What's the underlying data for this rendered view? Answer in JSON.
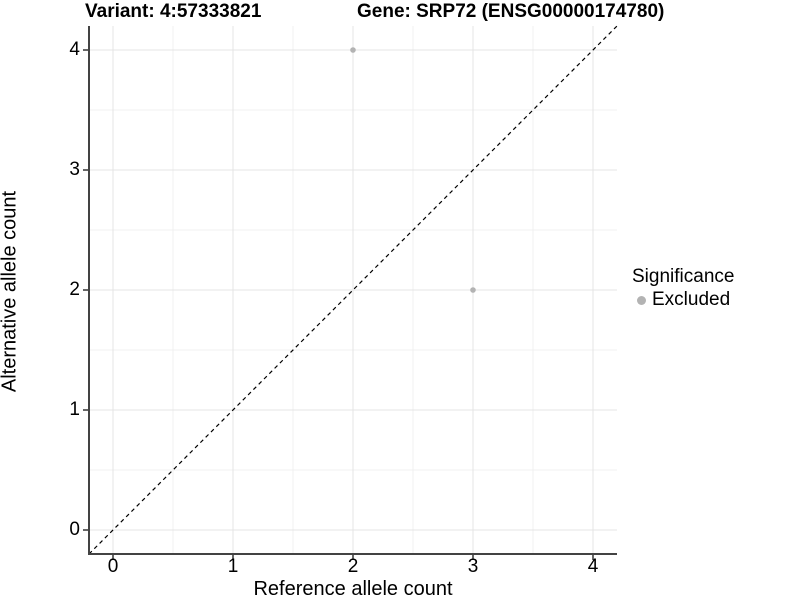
{
  "titles": {
    "variant": "Variant: 4:57333821",
    "gene": "Gene: SRP72 (ENSG00000174780)"
  },
  "chart_data": {
    "type": "scatter",
    "xlabel": "Reference allele count",
    "ylabel": "Alternative allele count",
    "xlim": [
      -0.2,
      4.2
    ],
    "ylim": [
      -0.2,
      4.2
    ],
    "x_ticks": [
      0,
      1,
      2,
      3,
      4
    ],
    "y_ticks": [
      0,
      1,
      2,
      3,
      4
    ],
    "x_minor": [
      0.5,
      1.5,
      2.5,
      3.5
    ],
    "y_minor": [
      0.5,
      1.5,
      2.5,
      3.5
    ],
    "grid": true,
    "points": [
      {
        "x": 2,
        "y": 4,
        "series": "Excluded"
      },
      {
        "x": 3,
        "y": 2,
        "series": "Excluded"
      }
    ],
    "identity_line": {
      "type": "dashed",
      "from": [
        -0.2,
        -0.2
      ],
      "to": [
        4.2,
        4.2
      ]
    },
    "legend": {
      "position": "right",
      "title": "Significance",
      "items": [
        {
          "label": "Excluded",
          "color": "#b3b3b3"
        }
      ]
    }
  },
  "colors": {
    "point_excluded": "#b3b3b3",
    "axis_line": "#434343",
    "tick_mark": "#333333",
    "grid_major": "#e4e4e4",
    "grid_minor": "#f0f0f0",
    "identity_line": "#000000",
    "text": "#000000",
    "background": "#ffffff"
  }
}
